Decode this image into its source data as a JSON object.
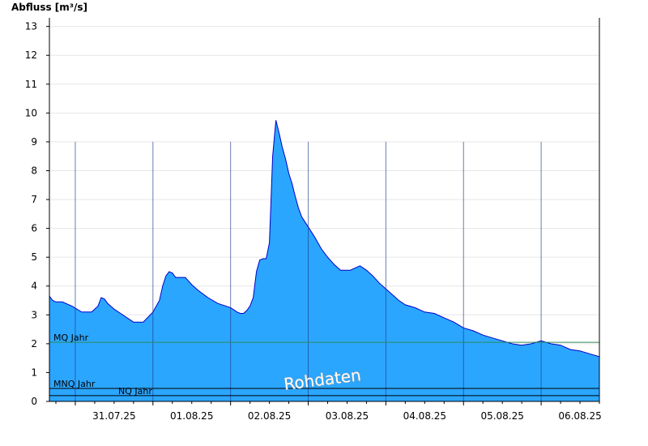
{
  "chart_data": {
    "type": "area",
    "ylabel": "Abfluss [m³/s]",
    "ylim": [
      0,
      13.3
    ],
    "yticks": [
      0,
      1,
      2,
      3,
      4,
      5,
      6,
      7,
      8,
      9,
      10,
      11,
      12,
      13
    ],
    "xlim": [
      "2025-07-30 16:00",
      "2025-08-06 18:00"
    ],
    "day_boundaries": [
      "2025-07-31",
      "2025-08-01",
      "2025-08-02",
      "2025-08-03",
      "2025-08-04",
      "2025-08-05",
      "2025-08-06"
    ],
    "xtick_labels": [
      "31.07.25",
      "01.08.25",
      "02.08.25",
      "03.08.25",
      "04.08.25",
      "05.08.25",
      "06.08.25"
    ],
    "grid": true,
    "fill_color": "#2ba6ff",
    "line_color": "#0000cc",
    "watermark": "Rohdaten",
    "reference_lines": [
      {
        "name": "MQ Jahr",
        "value": 2.05,
        "color": "#2e8b57"
      },
      {
        "name": "MNQ Jahr",
        "value": 0.45,
        "color": "#000000"
      },
      {
        "name": "NQ Jahr",
        "value": 0.2,
        "color": "#000000"
      }
    ],
    "series": [
      {
        "x": [
          "2025-07-30 16:00",
          "2025-07-30 17:00",
          "2025-07-30 18:00",
          "2025-07-30 20:00",
          "2025-07-30 23:00",
          "2025-07-31 02:00",
          "2025-07-31 05:00",
          "2025-07-31 07:00",
          "2025-07-31 08:00",
          "2025-07-31 09:00",
          "2025-07-31 10:00",
          "2025-07-31 12:00",
          "2025-07-31 14:00",
          "2025-07-31 16:00",
          "2025-07-31 18:00",
          "2025-07-31 21:00",
          "2025-08-01 00:00",
          "2025-08-01 02:00",
          "2025-08-01 03:00",
          "2025-08-01 04:00",
          "2025-08-01 05:00",
          "2025-08-01 06:00",
          "2025-08-01 07:00",
          "2025-08-01 10:00",
          "2025-08-01 12:00",
          "2025-08-01 14:00",
          "2025-08-01 17:00",
          "2025-08-01 20:00",
          "2025-08-02 00:00",
          "2025-08-02 02:00",
          "2025-08-02 03:00",
          "2025-08-02 04:00",
          "2025-08-02 05:00",
          "2025-08-02 06:00",
          "2025-08-02 07:00",
          "2025-08-02 08:00",
          "2025-08-02 09:00",
          "2025-08-02 10:00",
          "2025-08-02 11:00",
          "2025-08-02 12:00",
          "2025-08-02 13:00",
          "2025-08-02 14:00",
          "2025-08-02 15:00",
          "2025-08-02 16:00",
          "2025-08-02 17:00",
          "2025-08-02 18:00",
          "2025-08-02 19:00",
          "2025-08-02 20:00",
          "2025-08-02 21:00",
          "2025-08-02 22:00",
          "2025-08-03 00:00",
          "2025-08-03 02:00",
          "2025-08-03 04:00",
          "2025-08-03 06:00",
          "2025-08-03 08:00",
          "2025-08-03 10:00",
          "2025-08-03 13:00",
          "2025-08-03 16:00",
          "2025-08-03 18:00",
          "2025-08-03 20:00",
          "2025-08-03 22:00",
          "2025-08-04 00:00",
          "2025-08-04 02:00",
          "2025-08-04 04:00",
          "2025-08-04 06:00",
          "2025-08-04 09:00",
          "2025-08-04 12:00",
          "2025-08-04 15:00",
          "2025-08-04 18:00",
          "2025-08-04 21:00",
          "2025-08-05 00:00",
          "2025-08-05 03:00",
          "2025-08-05 06:00",
          "2025-08-05 09:00",
          "2025-08-05 12:00",
          "2025-08-05 15:00",
          "2025-08-05 18:00",
          "2025-08-05 21:00",
          "2025-08-06 00:00",
          "2025-08-06 03:00",
          "2025-08-06 06:00",
          "2025-08-06 09:00",
          "2025-08-06 12:00",
          "2025-08-06 15:00",
          "2025-08-06 18:00"
        ],
        "y": [
          3.65,
          3.5,
          3.45,
          3.45,
          3.3,
          3.1,
          3.1,
          3.3,
          3.6,
          3.55,
          3.4,
          3.2,
          3.05,
          2.9,
          2.75,
          2.75,
          3.1,
          3.5,
          4.0,
          4.35,
          4.5,
          4.45,
          4.3,
          4.3,
          4.05,
          3.85,
          3.6,
          3.4,
          3.25,
          3.1,
          3.05,
          3.05,
          3.15,
          3.3,
          3.6,
          4.5,
          4.9,
          4.95,
          4.95,
          5.5,
          8.5,
          9.75,
          9.3,
          8.8,
          8.4,
          7.9,
          7.55,
          7.1,
          6.7,
          6.4,
          6.05,
          5.7,
          5.3,
          5.0,
          4.75,
          4.55,
          4.55,
          4.7,
          4.55,
          4.35,
          4.1,
          3.9,
          3.7,
          3.5,
          3.35,
          3.25,
          3.1,
          3.05,
          2.9,
          2.75,
          2.55,
          2.45,
          2.3,
          2.2,
          2.1,
          2.0,
          1.95,
          2.0,
          2.1,
          2.0,
          1.95,
          1.8,
          1.75,
          1.65,
          1.55
        ]
      }
    ]
  }
}
